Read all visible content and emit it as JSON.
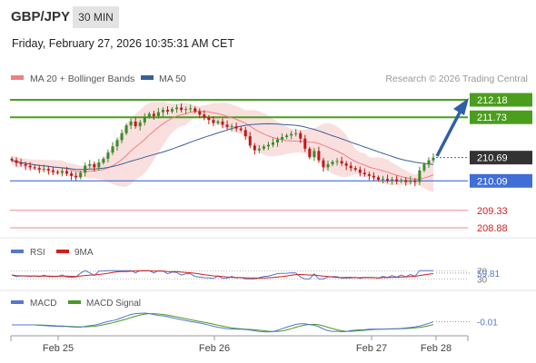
{
  "header": {
    "pair": "GBP/JPY",
    "timeframe": "30 MIN",
    "datetime": "Friday, February 27, 2026 10:35:31 AM CET"
  },
  "legend": {
    "ma20": "MA 20 + Bollinger Bands",
    "ma50": "MA 50",
    "credit": "Research © 2026 Trading Central",
    "ma20_color": "#f08080",
    "ma50_color": "#3a5f9a"
  },
  "chart_data": [
    {
      "type": "candlestick",
      "levels": [
        {
          "value": 212.18,
          "label": "212.18",
          "kind": "resistance",
          "color": "#4b9d1e"
        },
        {
          "value": 211.73,
          "label": "211.73",
          "kind": "resistance",
          "color": "#4b9d1e"
        },
        {
          "value": 210.69,
          "label": "210.69",
          "kind": "last",
          "color": "#333333"
        },
        {
          "value": 210.09,
          "label": "210.09",
          "kind": "pivot",
          "color": "#3f6fd6"
        },
        {
          "value": 209.33,
          "label": "209.33",
          "kind": "support",
          "color": "#e04040"
        },
        {
          "value": 208.88,
          "label": "208.88",
          "kind": "support",
          "color": "#e04040"
        }
      ],
      "x_ticks": [
        "Feb 25",
        "Feb 26",
        "Feb 27",
        "Feb 28"
      ],
      "series": {
        "close": [
          210.62,
          210.55,
          210.52,
          210.48,
          210.44,
          210.42,
          210.38,
          210.4,
          210.36,
          210.32,
          210.3,
          210.34,
          210.28,
          210.22,
          210.18,
          210.3,
          210.48,
          210.52,
          210.44,
          210.56,
          210.66,
          210.82,
          210.98,
          211.14,
          211.32,
          211.52,
          211.62,
          211.5,
          211.6,
          211.74,
          211.82,
          211.76,
          211.86,
          211.92,
          211.88,
          211.94,
          211.98,
          211.92,
          211.94,
          211.96,
          211.88,
          211.8,
          211.72,
          211.66,
          211.58,
          211.62,
          211.54,
          211.48,
          211.5,
          211.44,
          211.4,
          211.24,
          211.0,
          210.88,
          210.92,
          210.98,
          211.02,
          211.08,
          211.16,
          211.22,
          211.26,
          211.3,
          211.32,
          211.18,
          210.92,
          210.7,
          210.86,
          210.62,
          210.44,
          210.52,
          210.58,
          210.6,
          210.54,
          210.48,
          210.42,
          210.38,
          210.3,
          210.26,
          210.22,
          210.18,
          210.12,
          210.14,
          210.1,
          210.13,
          210.08,
          210.11,
          210.06,
          210.1,
          210.06,
          210.36,
          210.52,
          210.62,
          210.69
        ],
        "open": [
          210.66,
          210.62,
          210.55,
          210.52,
          210.48,
          210.44,
          210.42,
          210.38,
          210.4,
          210.36,
          210.32,
          210.3,
          210.34,
          210.28,
          210.22,
          210.18,
          210.3,
          210.48,
          210.52,
          210.44,
          210.56,
          210.66,
          210.82,
          210.98,
          211.14,
          211.32,
          211.52,
          211.62,
          211.5,
          211.6,
          211.74,
          211.82,
          211.76,
          211.86,
          211.92,
          211.88,
          211.94,
          211.98,
          211.92,
          211.94,
          211.96,
          211.88,
          211.8,
          211.72,
          211.66,
          211.58,
          211.62,
          211.54,
          211.48,
          211.5,
          211.44,
          211.4,
          211.24,
          211.0,
          210.88,
          210.92,
          210.98,
          211.02,
          211.08,
          211.16,
          211.22,
          211.26,
          211.3,
          211.32,
          211.18,
          210.92,
          210.7,
          210.86,
          210.62,
          210.44,
          210.52,
          210.58,
          210.6,
          210.54,
          210.48,
          210.42,
          210.38,
          210.3,
          210.26,
          210.22,
          210.18,
          210.12,
          210.14,
          210.1,
          210.13,
          210.08,
          210.11,
          210.06,
          210.1,
          210.06,
          210.36,
          210.52,
          210.62
        ]
      }
    },
    {
      "type": "line",
      "title": "RSI",
      "series": [
        {
          "name": "RSI",
          "color": "#5577cc"
        },
        {
          "name": "9MA",
          "color": "#d02020"
        }
      ],
      "ticks": [
        "70",
        "30"
      ],
      "last_value": 59.81
    },
    {
      "type": "line",
      "title": "MACD",
      "series": [
        {
          "name": "MACD",
          "color": "#5577cc"
        },
        {
          "name": "MACD Signal",
          "color": "#4a9a20"
        }
      ],
      "last_value": -0.01
    }
  ]
}
